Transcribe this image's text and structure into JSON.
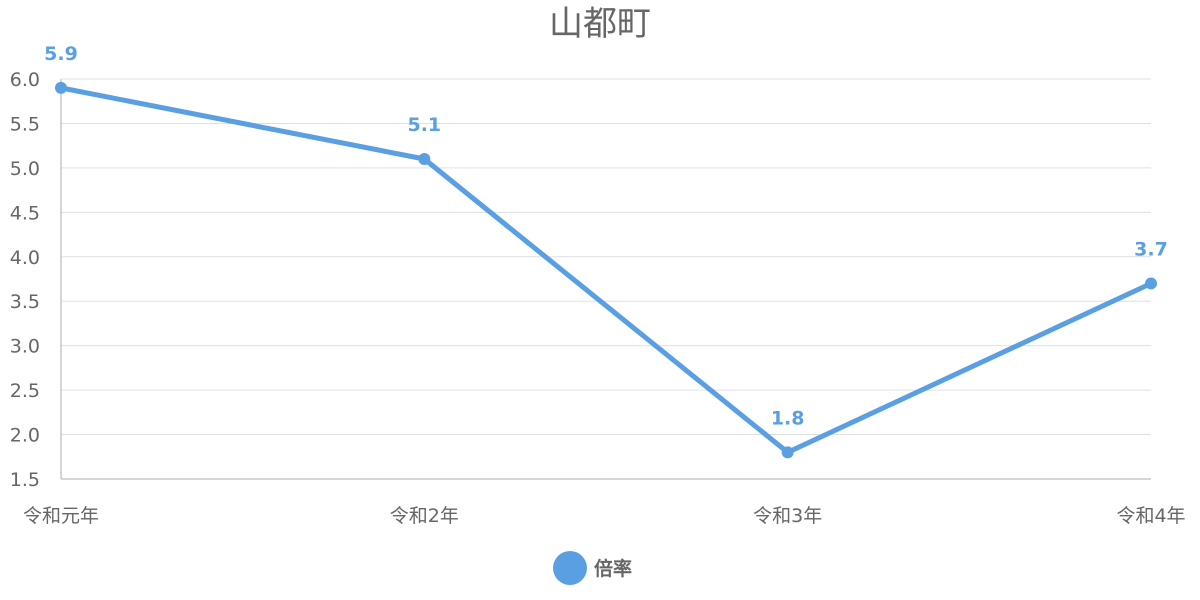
{
  "chart_data": {
    "type": "line",
    "title": "山都町",
    "categories": [
      "令和元年",
      "令和2年",
      "令和3年",
      "令和4年"
    ],
    "series": [
      {
        "name": "倍率",
        "values": [
          5.9,
          5.1,
          1.8,
          3.7
        ],
        "color": "#5a9fe2"
      }
    ],
    "data_labels": [
      "5.9",
      "5.1",
      "1.8",
      "3.7"
    ],
    "ylim": [
      1.5,
      6.0
    ],
    "yticks": [
      1.5,
      2.0,
      2.5,
      3.0,
      3.5,
      4.0,
      4.5,
      5.0,
      5.5,
      6.0
    ],
    "ytick_labels": [
      "1.5",
      "2.0",
      "2.5",
      "3.0",
      "3.5",
      "4.0",
      "4.5",
      "5.0",
      "5.5",
      "6.0"
    ],
    "grid": true,
    "legend_position": "bottom-center",
    "xlabel": "",
    "ylabel": ""
  }
}
